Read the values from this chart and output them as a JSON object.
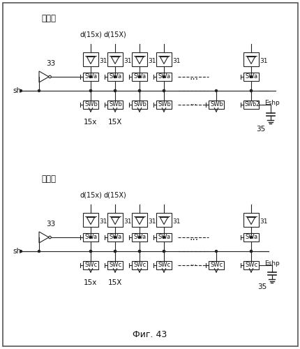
{
  "title": "Фиг. 43",
  "label_a": "（ａ）",
  "label_b": "（ｂ）",
  "bg_color": "#ffffff",
  "border_color": "#888888",
  "line_color": "#222222",
  "text_color": "#111111",
  "font_size": 7.5,
  "fig_width": 4.31,
  "fig_height": 5.0,
  "dpi": 100
}
